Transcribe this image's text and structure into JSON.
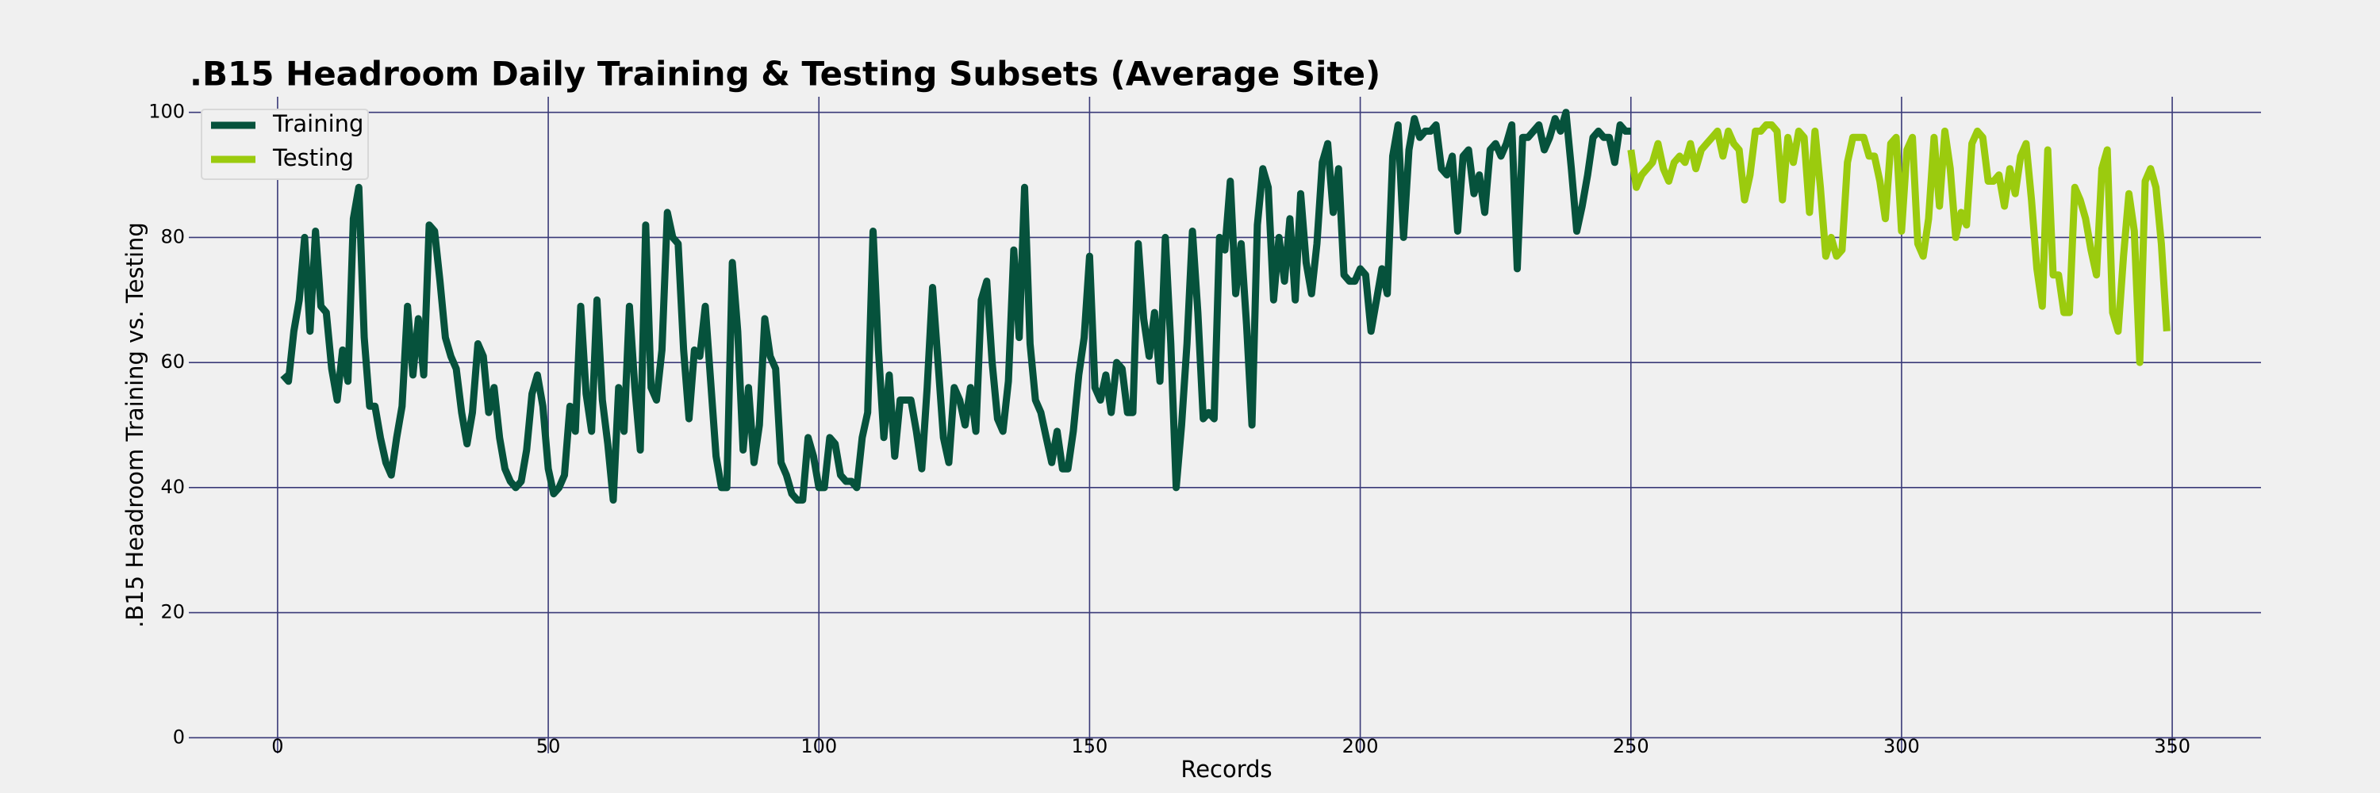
{
  "chart_data": {
    "type": "line",
    "title": ".B15 Headroom Daily Training & Testing Subsets (Average Site)",
    "x_label": "Records",
    "y_label": ".B15 Headroom Training vs. Testing",
    "xlim": [
      -16.4,
      366.4
    ],
    "xticks": [
      0,
      50,
      100,
      150,
      200,
      250,
      300,
      350
    ],
    "ylim": [
      -2.5,
      102.5
    ],
    "yticks": [
      0,
      20,
      40,
      60,
      80,
      100
    ],
    "grid": true,
    "legend": "upper left",
    "series": [
      {
        "name": "Training",
        "color": "#06523c",
        "x": [
          1,
          2,
          3,
          4,
          5,
          6,
          7,
          8,
          9,
          10,
          11,
          12,
          13,
          14,
          15,
          16,
          17,
          18,
          19,
          20,
          21,
          22,
          23,
          24,
          25,
          26,
          27,
          28,
          29,
          30,
          31,
          32,
          33,
          34,
          35,
          36,
          37,
          38,
          39,
          40,
          41,
          42,
          43,
          44,
          45,
          46,
          47,
          48,
          49,
          50,
          51,
          52,
          53,
          54,
          55,
          56,
          57,
          58,
          59,
          60,
          61,
          62,
          63,
          64,
          65,
          66,
          67,
          68,
          69,
          70,
          71,
          72,
          73,
          74,
          75,
          76,
          77,
          78,
          79,
          80,
          81,
          82,
          83,
          84,
          85,
          86,
          87,
          88,
          89,
          90,
          91,
          92,
          93,
          94,
          95,
          96,
          97,
          98,
          99,
          100,
          101,
          102,
          103,
          104,
          105,
          106,
          107,
          108,
          109,
          110,
          111,
          112,
          113,
          114,
          115,
          116,
          117,
          118,
          119,
          120,
          121,
          122,
          123,
          124,
          125,
          126,
          127,
          128,
          129,
          130,
          131,
          132,
          133,
          134,
          135,
          136,
          137,
          138,
          139,
          140,
          141,
          142,
          143,
          144,
          145,
          146,
          147,
          148,
          149,
          150,
          151,
          152,
          153,
          154,
          155,
          156,
          157,
          158,
          159,
          160,
          161,
          162,
          163,
          164,
          165,
          166,
          167,
          168,
          169,
          170,
          171,
          172,
          173,
          174,
          175,
          176,
          177,
          178,
          179,
          180,
          181,
          182,
          183,
          184,
          185,
          186,
          187,
          188,
          189,
          190,
          191,
          192,
          193,
          194,
          195,
          196,
          197,
          198,
          199,
          200,
          201,
          202,
          203,
          204,
          205,
          206,
          207,
          208,
          209,
          210,
          211,
          212,
          213,
          214,
          215,
          216,
          217,
          218,
          219,
          220,
          221,
          222,
          223,
          224,
          225,
          226,
          227,
          228,
          229,
          230,
          231,
          232,
          233,
          234,
          235,
          236,
          237,
          238,
          239,
          240,
          241,
          242,
          243,
          244,
          245,
          246,
          247,
          248,
          249,
          250
        ],
        "values": [
          58,
          57,
          65,
          70,
          80,
          65,
          81,
          69,
          68,
          59,
          54,
          62,
          57,
          83,
          88,
          64,
          53,
          53,
          48,
          44,
          42,
          48,
          53,
          69,
          58,
          67,
          58,
          82,
          81,
          73,
          64,
          61,
          59,
          52,
          47,
          52,
          63,
          61,
          52,
          56,
          48,
          43,
          41,
          40,
          41,
          46,
          55,
          58,
          53,
          43,
          39,
          40,
          42,
          53,
          49,
          69,
          55,
          49,
          70,
          54,
          47,
          38,
          56,
          49,
          69,
          56,
          46,
          82,
          56,
          54,
          62,
          84,
          80,
          79,
          62,
          51,
          62,
          61,
          69,
          57,
          45,
          40,
          40,
          76,
          65,
          46,
          56,
          44,
          50,
          67,
          61,
          59,
          44,
          42,
          39,
          38,
          38,
          48,
          45,
          40,
          40,
          48,
          47,
          42,
          41,
          41,
          40,
          48,
          52,
          81,
          62,
          48,
          58,
          45,
          54,
          54,
          54,
          49,
          43,
          56,
          72,
          60,
          48,
          44,
          56,
          54,
          50,
          56,
          49,
          70,
          73,
          60,
          51,
          49,
          57,
          78,
          64,
          88,
          63,
          54,
          52,
          48,
          44,
          49,
          43,
          43,
          49,
          58,
          64,
          77,
          56,
          54,
          58,
          52,
          60,
          59,
          52,
          52,
          79,
          67,
          61,
          68,
          57,
          80,
          63,
          40,
          50,
          63,
          81,
          68,
          51,
          52,
          51,
          80,
          78,
          89,
          71,
          79,
          66,
          50,
          82,
          91,
          88,
          70,
          80,
          73,
          83,
          70,
          87,
          76,
          71,
          79,
          92,
          95,
          84,
          91,
          74,
          73,
          73,
          75,
          74,
          65,
          70,
          75,
          71,
          93,
          98,
          80,
          94,
          99,
          96,
          97,
          97,
          98,
          91,
          90,
          93,
          81,
          93,
          94,
          87,
          90,
          84,
          94,
          95,
          93,
          95,
          98,
          75,
          96,
          96,
          97,
          98,
          94,
          96,
          99,
          97,
          100,
          91,
          81,
          85,
          90,
          96,
          97,
          96,
          96,
          92,
          98,
          97,
          97
        ]
      },
      {
        "name": "Testing",
        "color": "#9bcb0e",
        "x": [
          250,
          251,
          252,
          253,
          254,
          255,
          256,
          257,
          258,
          259,
          260,
          261,
          262,
          263,
          264,
          265,
          266,
          267,
          268,
          269,
          270,
          271,
          272,
          273,
          274,
          275,
          276,
          277,
          278,
          279,
          280,
          281,
          282,
          283,
          284,
          285,
          286,
          287,
          288,
          289,
          290,
          291,
          292,
          293,
          294,
          295,
          296,
          297,
          298,
          299,
          300,
          301,
          302,
          303,
          304,
          305,
          306,
          307,
          308,
          309,
          310,
          311,
          312,
          313,
          314,
          315,
          316,
          317,
          318,
          319,
          320,
          321,
          322,
          323,
          324,
          325,
          326,
          327,
          328,
          329,
          330,
          331,
          332,
          333,
          334,
          335,
          336,
          337,
          338,
          339,
          340,
          341,
          342,
          343,
          344,
          345,
          346,
          347,
          348,
          349
        ],
        "values": [
          94,
          88,
          90,
          91,
          92,
          95,
          91,
          89,
          92,
          93,
          92,
          95,
          91,
          94,
          95,
          96,
          97,
          93,
          97,
          95,
          94,
          86,
          90,
          97,
          97,
          98,
          98,
          97,
          86,
          96,
          92,
          97,
          96,
          84,
          97,
          88,
          77,
          80,
          77,
          78,
          92,
          96,
          96,
          96,
          93,
          93,
          89,
          83,
          95,
          96,
          81,
          94,
          96,
          79,
          77,
          83,
          96,
          85,
          97,
          91,
          80,
          84,
          82,
          95,
          97,
          96,
          89,
          89,
          90,
          85,
          91,
          87,
          93,
          95,
          86,
          75,
          69,
          94,
          74,
          74,
          68,
          68,
          88,
          86,
          83,
          78,
          74,
          91,
          94,
          68,
          65,
          77,
          87,
          81,
          60,
          89,
          91,
          88,
          79,
          65
        ]
      }
    ]
  }
}
